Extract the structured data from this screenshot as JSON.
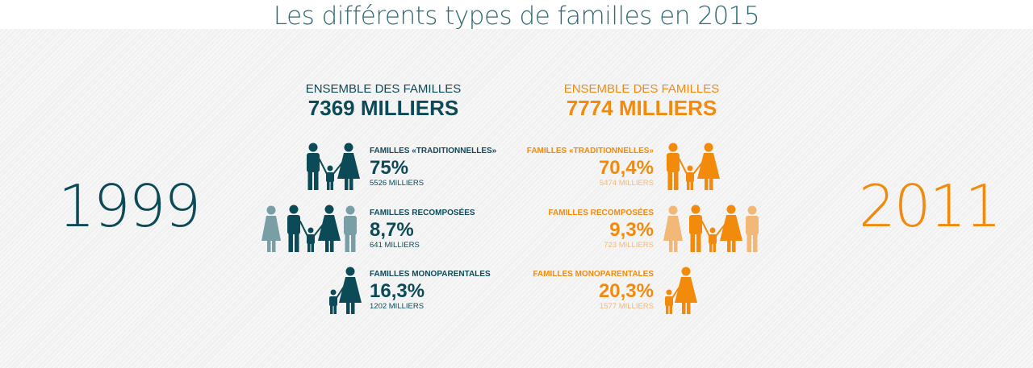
{
  "title": "Les différents types de familles en 2015",
  "colors": {
    "title": "#2c6b74",
    "dark_teal": "#0d4a58",
    "light_teal": "#7a9ea6",
    "orange": "#f28a0c",
    "light_orange": "#f2b878",
    "text_grey": "#7a7a7a"
  },
  "left": {
    "year": "1999",
    "total_label": "ENSEMBLE DES FAMILLES",
    "total_value": "7369 MILLIERS",
    "rows": [
      {
        "label": "FAMILLES «TRADITIONNELLES»",
        "percent": "75%",
        "count": "5526 MILLIERS",
        "icon": "traditional-family-icon"
      },
      {
        "label": "FAMILLES RECOMPOSÉES",
        "percent": "8,7%",
        "count": "641 MILLIERS",
        "icon": "blended-family-icon"
      },
      {
        "label": "FAMILLES MONOPARENTALES",
        "percent": "16,3%",
        "count": "1202 MILLIERS",
        "icon": "single-parent-family-icon"
      }
    ]
  },
  "right": {
    "year": "2011",
    "total_label": "ENSEMBLE DES FAMILLES",
    "total_value": "7774 MILLIERS",
    "rows": [
      {
        "label": "FAMILLES «TRADITIONNELLES»",
        "percent": "70,4%",
        "count": "5474 MILLIERS",
        "icon": "traditional-family-icon"
      },
      {
        "label": "FAMILLES RECOMPOSÉES",
        "percent": "9,3%",
        "count": "723 MILLIERS",
        "icon": "blended-family-icon"
      },
      {
        "label": "FAMILLES MONOPARENTALES",
        "percent": "20,3%",
        "count": "1577 MILLIERS",
        "icon": "single-parent-family-icon"
      }
    ]
  }
}
